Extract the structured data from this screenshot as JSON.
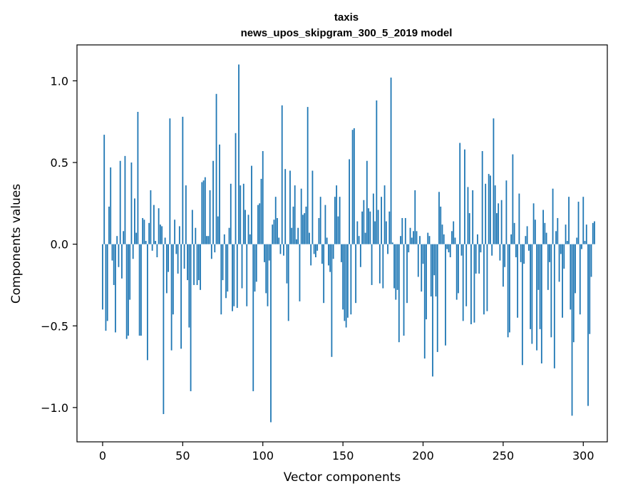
{
  "chart_data": {
    "type": "bar",
    "title_line1": "taxis",
    "title_line2": "news_upos_skipgram_300_5_2019 model",
    "xlabel": "Vector components",
    "ylabel": "Components values",
    "xlim": [
      -16,
      315
    ],
    "ylim": [
      -1.21,
      1.22
    ],
    "xticks": [
      0,
      50,
      100,
      150,
      200,
      250,
      300
    ],
    "xtick_labels": [
      "0",
      "50",
      "100",
      "150",
      "200",
      "250",
      "300"
    ],
    "yticks": [
      -1.0,
      -0.5,
      0.0,
      0.5,
      1.0
    ],
    "ytick_labels": [
      "−1.0",
      "−0.5",
      "0.0",
      "0.5",
      "1.0"
    ],
    "color": "#1f77b4",
    "values": [
      -0.4,
      0.67,
      -0.53,
      -0.47,
      0.23,
      0.47,
      -0.1,
      -0.25,
      -0.54,
      0.05,
      -0.14,
      0.51,
      -0.21,
      0.08,
      0.54,
      -0.58,
      -0.56,
      -0.34,
      0.5,
      -0.09,
      0.28,
      0.07,
      0.81,
      -0.56,
      -0.56,
      0.16,
      0.15,
      0.02,
      -0.71,
      0.13,
      0.33,
      -0.04,
      0.24,
      0.02,
      -0.08,
      0.22,
      0.12,
      0.11,
      -1.04,
      0.04,
      -0.3,
      -0.17,
      0.77,
      -0.65,
      -0.43,
      0.15,
      -0.06,
      -0.18,
      0.11,
      -0.64,
      0.78,
      -0.15,
      0.36,
      -0.22,
      -0.51,
      -0.9,
      0.21,
      -0.25,
      0.1,
      -0.25,
      -0.22,
      -0.28,
      0.38,
      0.39,
      0.41,
      0.05,
      0.05,
      0.33,
      -0.09,
      0.51,
      -0.05,
      0.92,
      0.17,
      0.61,
      -0.43,
      -0.22,
      0.06,
      -0.33,
      -0.29,
      0.1,
      0.37,
      -0.41,
      -0.38,
      0.68,
      -0.39,
      1.1,
      0.36,
      -0.27,
      0.37,
      0.21,
      -0.38,
      0.18,
      0.06,
      0.48,
      -0.9,
      -0.29,
      -0.23,
      0.24,
      0.25,
      0.4,
      0.57,
      -0.11,
      -0.3,
      -0.38,
      -0.1,
      -1.09,
      0.12,
      0.15,
      0.29,
      0.16,
      0.04,
      -0.06,
      0.85,
      -0.07,
      0.46,
      -0.24,
      -0.47,
      0.45,
      0.1,
      0.23,
      0.36,
      0.03,
      0.1,
      -0.35,
      0.34,
      0.18,
      0.19,
      0.23,
      0.84,
      0.07,
      -0.13,
      0.45,
      -0.06,
      -0.08,
      -0.04,
      0.16,
      0.29,
      -0.12,
      -0.36,
      0.24,
      0.04,
      -0.13,
      -0.17,
      -0.69,
      -0.09,
      0.29,
      0.36,
      0.17,
      0.29,
      -0.11,
      -0.4,
      -0.47,
      -0.51,
      -0.45,
      0.52,
      -0.43,
      0.7,
      0.71,
      -0.36,
      0.14,
      0.05,
      -0.14,
      0.2,
      0.27,
      0.07,
      0.51,
      0.22,
      0.2,
      -0.25,
      0.31,
      0.14,
      0.88,
      0.21,
      -0.24,
      0.29,
      -0.27,
      0.36,
      0.14,
      -0.06,
      0.2,
      1.02,
      0.01,
      -0.27,
      -0.34,
      -0.28,
      -0.6,
      0.05,
      0.16,
      -0.56,
      0.16,
      -0.36,
      -0.05,
      0.1,
      0.04,
      0.08,
      0.33,
      0.08,
      -0.2,
      0.05,
      -0.29,
      -0.12,
      -0.7,
      -0.46,
      0.07,
      0.05,
      -0.32,
      -0.81,
      -0.19,
      -0.32,
      -0.66,
      0.32,
      0.23,
      0.12,
      0.06,
      -0.62,
      -0.03,
      -0.05,
      -0.08,
      0.08,
      0.14,
      0.04,
      -0.34,
      -0.3,
      0.62,
      -0.07,
      -0.47,
      0.58,
      -0.38,
      0.35,
      0.19,
      -0.49,
      0.33,
      -0.48,
      -0.18,
      0.06,
      -0.18,
      -0.05,
      0.57,
      -0.43,
      0.37,
      -0.41,
      0.43,
      0.42,
      -0.07,
      0.77,
      0.36,
      0.19,
      0.25,
      -0.1,
      0.27,
      -0.26,
      -0.14,
      0.39,
      -0.57,
      -0.54,
      0.06,
      0.55,
      0.13,
      -0.08,
      -0.45,
      0.31,
      -0.11,
      -0.74,
      -0.12,
      0.05,
      0.11,
      -0.04,
      -0.52,
      -0.61,
      0.25,
      0.15,
      -0.65,
      -0.28,
      -0.52,
      -0.73,
      0.21,
      0.13,
      0.07,
      -0.28,
      -0.11,
      -0.57,
      0.34,
      -0.76,
      0.08,
      0.16,
      -0.23,
      -0.06,
      -0.45,
      -0.15,
      0.12,
      0.02,
      0.29,
      -0.4,
      -1.05,
      -0.6,
      -0.3,
      0.04,
      0.26,
      -0.43,
      -0.03,
      0.29,
      0.02,
      0.12,
      -0.99,
      -0.55,
      -0.2,
      0.13,
      0.14
    ]
  }
}
